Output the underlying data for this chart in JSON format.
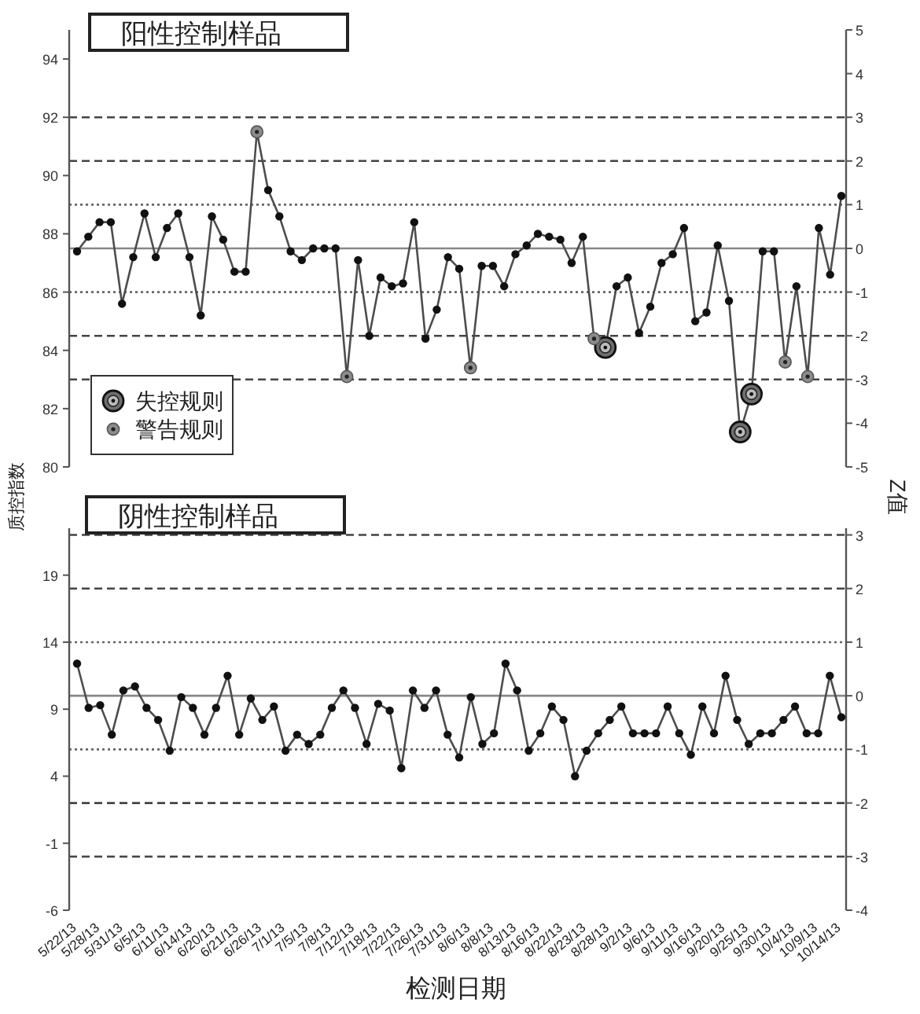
{
  "chart_data": [
    {
      "type": "line",
      "title": "阳性控制样品",
      "categories": [
        null,
        null,
        null,
        null,
        null,
        null,
        null,
        null,
        null,
        null,
        null,
        null,
        null,
        null,
        null,
        null,
        null,
        null,
        null,
        null,
        null,
        null,
        null,
        null,
        null,
        null,
        null,
        null,
        null,
        null,
        null,
        null,
        null,
        null,
        null,
        null,
        null,
        null,
        null,
        null,
        null,
        null,
        null,
        null,
        null,
        null,
        null,
        null,
        null,
        null,
        null,
        null,
        null,
        null,
        null,
        null,
        null,
        null,
        null,
        null,
        null,
        null,
        null,
        null,
        null,
        null,
        null,
        null,
        null
      ],
      "ylim": [
        80,
        95
      ],
      "yticks": [
        80,
        82,
        84,
        86,
        88,
        90,
        92,
        94
      ],
      "y2lim": [
        -5,
        5
      ],
      "y2ticks": [
        -5,
        -4,
        -3,
        -2,
        -1,
        0,
        1,
        2,
        3,
        4,
        5
      ],
      "marker": "circle",
      "legend": "bottom left",
      "series": [
        {
          "color": "#4d4d4d",
          "values": [
            87.4,
            87.9,
            88.4,
            88.4,
            85.6,
            87.2,
            88.7,
            87.2,
            88.2,
            88.7,
            87.2,
            85.2,
            88.6,
            87.8,
            86.7,
            86.7,
            91.5,
            89.5,
            88.6,
            87.4,
            87.1,
            87.5,
            87.5,
            87.5,
            83.1,
            87.1,
            84.5,
            86.5,
            86.2,
            86.3,
            88.4,
            84.4,
            85.4,
            87.2,
            86.8,
            83.4,
            86.9,
            86.9,
            86.2,
            87.3,
            87.6,
            88.0,
            87.9,
            87.8,
            87.0,
            87.9,
            84.4,
            84.1,
            86.2,
            86.5,
            84.6,
            85.5,
            87.0,
            87.3,
            88.2,
            85.0,
            85.3,
            87.6,
            85.7,
            81.2,
            82.5,
            87.4,
            87.4,
            83.6,
            86.2,
            83.1,
            88.2,
            86.6,
            89.3
          ]
        },
        {
          "type": "scatter",
          "name": "失控规则",
          "color": "#6e6e6e",
          "values": [
            null,
            null,
            null,
            null,
            null,
            null,
            null,
            null,
            null,
            null,
            null,
            null,
            null,
            null,
            null,
            null,
            null,
            null,
            null,
            null,
            null,
            null,
            null,
            null,
            null,
            null,
            null,
            null,
            null,
            null,
            null,
            null,
            null,
            null,
            null,
            null,
            null,
            null,
            null,
            null,
            null,
            null,
            null,
            null,
            null,
            null,
            null,
            84.1,
            null,
            null,
            null,
            null,
            null,
            null,
            null,
            null,
            null,
            null,
            null,
            81.2,
            82.5,
            null,
            null,
            null,
            null,
            null,
            null,
            null,
            null
          ]
        },
        {
          "type": "scatter",
          "name": "警告规则",
          "color": "#8c8c8c",
          "values": [
            null,
            null,
            null,
            null,
            null,
            null,
            null,
            null,
            null,
            null,
            null,
            null,
            null,
            null,
            null,
            null,
            91.5,
            null,
            null,
            null,
            null,
            null,
            null,
            null,
            83.1,
            null,
            null,
            null,
            null,
            null,
            null,
            null,
            null,
            null,
            null,
            83.4,
            null,
            null,
            null,
            null,
            null,
            null,
            null,
            null,
            null,
            null,
            84.4,
            null,
            null,
            null,
            null,
            null,
            null,
            null,
            null,
            null,
            null,
            null,
            null,
            null,
            null,
            null,
            null,
            83.6,
            null,
            83.1,
            null,
            null,
            null
          ]
        }
      ],
      "ref_lines": [
        {
          "axis": "y2",
          "value": 0,
          "line_style": "solid",
          "color": "#888888"
        },
        {
          "axis": "y2",
          "value": 1,
          "line_style": "dotted",
          "color": "#666666"
        },
        {
          "axis": "y2",
          "value": -1,
          "line_style": "dotted",
          "color": "#666666"
        },
        {
          "axis": "y2",
          "value": 2,
          "line_style": "dashed",
          "color": "#444444"
        },
        {
          "axis": "y2",
          "value": -2,
          "line_style": "dashed",
          "color": "#444444"
        },
        {
          "axis": "y2",
          "value": 3,
          "line_style": "dashed",
          "color": "#444444"
        },
        {
          "axis": "y2",
          "value": -3,
          "line_style": "dashed",
          "color": "#444444"
        }
      ]
    },
    {
      "type": "line",
      "title": "阴性控制样品",
      "xlabel": "检测日期",
      "ylabel": "质控指数",
      "y2label": "Z值",
      "categories": [
        "5/22/13",
        null,
        "5/28/13",
        null,
        "5/31/13",
        null,
        "6/5/13",
        null,
        "6/11/13",
        null,
        "6/14/13",
        null,
        "6/20/13",
        null,
        "6/21/13",
        null,
        "6/26/13",
        null,
        "7/1/13",
        null,
        "7/5/13",
        null,
        "7/8/13",
        null,
        "7/12/13",
        null,
        "7/18/13",
        null,
        "7/22/13",
        null,
        "7/26/13",
        null,
        "7/31/13",
        null,
        "8/6/13",
        null,
        "8/8/13",
        null,
        "8/13/13",
        null,
        "8/16/13",
        null,
        "8/22/13",
        null,
        "8/23/13",
        null,
        "8/28/13",
        null,
        "9/2/13",
        null,
        "9/6/13",
        null,
        "9/11/13",
        null,
        "9/16/13",
        null,
        "9/20/13",
        null,
        "9/25/13",
        null,
        "9/30/13",
        null,
        "10/4/13",
        null,
        "10/9/13",
        null,
        "10/14/13"
      ],
      "ylim": [
        -6,
        22.5
      ],
      "yticks": [
        -6,
        -1,
        4,
        9,
        14,
        19
      ],
      "y2lim": [
        -4,
        3.125
      ],
      "y2ticks": [
        -4,
        -3,
        -2,
        -1,
        0,
        1,
        2,
        3
      ],
      "marker": "circle",
      "series": [
        {
          "color": "#4d4d4d",
          "values": [
            12.4,
            9.1,
            9.3,
            7.1,
            10.4,
            10.7,
            9.1,
            8.2,
            5.9,
            9.9,
            9.1,
            7.1,
            9.1,
            11.5,
            7.1,
            9.8,
            8.2,
            9.2,
            5.9,
            7.1,
            6.4,
            7.1,
            9.1,
            10.4,
            9.1,
            6.4,
            9.4,
            8.9,
            4.6,
            10.4,
            9.1,
            10.4,
            7.1,
            5.4,
            9.9,
            6.4,
            7.2,
            12.4,
            10.4,
            5.9,
            7.2,
            9.2,
            8.2,
            4.0,
            5.9,
            7.2,
            8.2,
            9.2,
            7.2,
            7.2,
            7.2,
            9.2,
            7.2,
            5.6,
            9.2,
            7.2,
            11.5,
            8.2,
            6.4,
            7.2,
            7.2,
            8.2,
            9.2,
            7.2,
            7.2,
            11.5,
            8.4
          ]
        }
      ],
      "ref_lines": [
        {
          "axis": "y2",
          "value": 0,
          "line_style": "solid",
          "color": "#888888"
        },
        {
          "axis": "y2",
          "value": 1,
          "line_style": "dotted",
          "color": "#666666"
        },
        {
          "axis": "y2",
          "value": -1,
          "line_style": "dotted",
          "color": "#666666"
        },
        {
          "axis": "y2",
          "value": 2,
          "line_style": "dashed",
          "color": "#444444"
        },
        {
          "axis": "y2",
          "value": -2,
          "line_style": "dashed",
          "color": "#444444"
        },
        {
          "axis": "y2",
          "value": 3,
          "line_style": "dashed",
          "color": "#444444"
        },
        {
          "axis": "y2",
          "value": -3,
          "line_style": "dashed",
          "color": "#444444"
        }
      ]
    }
  ]
}
